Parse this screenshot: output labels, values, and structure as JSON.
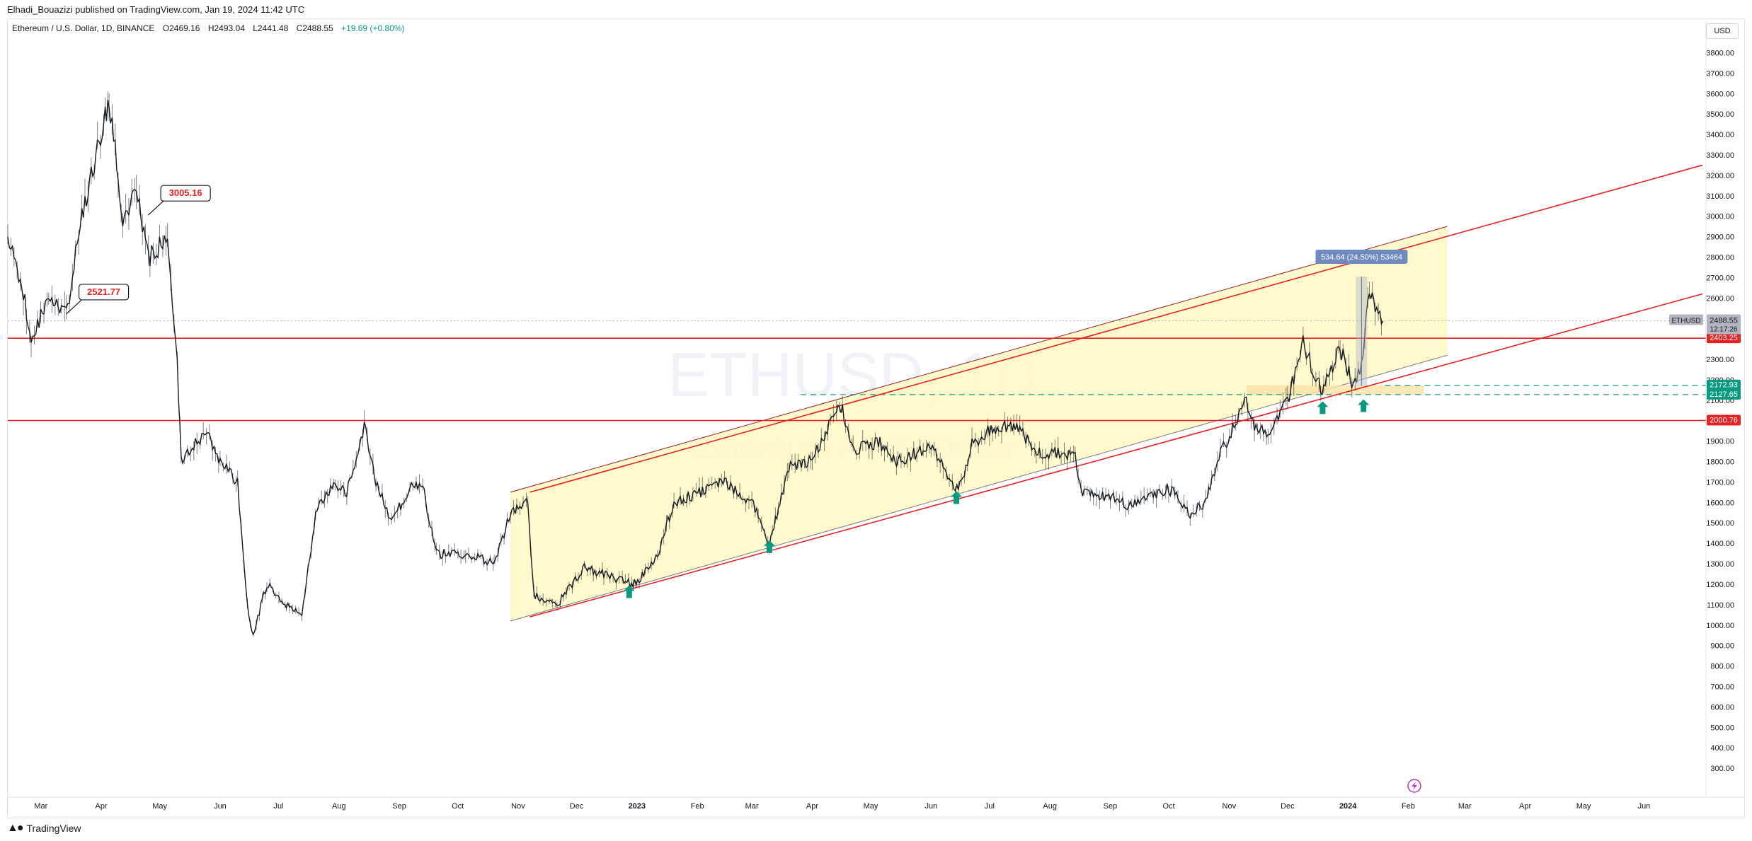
{
  "header": {
    "publisher": "Elhadi_Bouazizi published on TradingView.com, Jan 19, 2024 11:42 UTC"
  },
  "legend": {
    "symbol_desc": "Ethereum / U.S. Dollar, 1D, BINANCE",
    "open_label": "O",
    "open": "2469.16",
    "high_label": "H",
    "high": "2493.04",
    "low_label": "L",
    "low": "2441.48",
    "close_label": "C",
    "close": "2488.55",
    "change": "+19.69 (+0.80%)"
  },
  "currency": "USD",
  "footer": {
    "logo_text": "TradingView",
    "logo_icon": "tv-logo-icon"
  },
  "chart_data": {
    "type": "candlestick",
    "symbol": "ETHUSD",
    "interval": "1D",
    "watermark": {
      "symbol": "ETHUSD, 1D",
      "description": "Ethereum / U.S. Dollar"
    },
    "y_axis": {
      "scale": "linear",
      "range": [
        200,
        3850
      ],
      "ticks": [
        300,
        400,
        500,
        600,
        700,
        800,
        900,
        1000,
        1100,
        1200,
        1300,
        1400,
        1500,
        1600,
        1700,
        1800,
        1900,
        2000,
        2100,
        2200,
        2300,
        2400,
        2500,
        2600,
        2700,
        2800,
        2900,
        3000,
        3100,
        3200,
        3300,
        3400,
        3500,
        3600,
        3700,
        3800
      ]
    },
    "x_axis": {
      "range": [
        "2022-02-12",
        "2024-07-01"
      ],
      "ticks": [
        {
          "date": "2022-03-01",
          "label": "Mar",
          "bold": false
        },
        {
          "date": "2022-04-01",
          "label": "Apr",
          "bold": false
        },
        {
          "date": "2022-05-01",
          "label": "May",
          "bold": false
        },
        {
          "date": "2022-06-01",
          "label": "Jun",
          "bold": false
        },
        {
          "date": "2022-07-01",
          "label": "Jul",
          "bold": false
        },
        {
          "date": "2022-08-01",
          "label": "Aug",
          "bold": false
        },
        {
          "date": "2022-09-01",
          "label": "Sep",
          "bold": false
        },
        {
          "date": "2022-10-01",
          "label": "Oct",
          "bold": false
        },
        {
          "date": "2022-11-01",
          "label": "Nov",
          "bold": false
        },
        {
          "date": "2022-12-01",
          "label": "Dec",
          "bold": false
        },
        {
          "date": "2023-01-01",
          "label": "2023",
          "bold": true
        },
        {
          "date": "2023-02-01",
          "label": "Feb",
          "bold": false
        },
        {
          "date": "2023-03-01",
          "label": "Mar",
          "bold": false
        },
        {
          "date": "2023-04-01",
          "label": "Apr",
          "bold": false
        },
        {
          "date": "2023-05-01",
          "label": "May",
          "bold": false
        },
        {
          "date": "2023-06-01",
          "label": "Jun",
          "bold": false
        },
        {
          "date": "2023-07-01",
          "label": "Jul",
          "bold": false
        },
        {
          "date": "2023-08-01",
          "label": "Aug",
          "bold": false
        },
        {
          "date": "2023-09-01",
          "label": "Sep",
          "bold": false
        },
        {
          "date": "2023-10-01",
          "label": "Oct",
          "bold": false
        },
        {
          "date": "2023-11-01",
          "label": "Nov",
          "bold": false
        },
        {
          "date": "2023-12-01",
          "label": "Dec",
          "bold": false
        },
        {
          "date": "2024-01-01",
          "label": "2024",
          "bold": true
        },
        {
          "date": "2024-02-01",
          "label": "Feb",
          "bold": false
        },
        {
          "date": "2024-03-01",
          "label": "Mar",
          "bold": false
        },
        {
          "date": "2024-04-01",
          "label": "Apr",
          "bold": false
        },
        {
          "date": "2024-05-01",
          "label": "May",
          "bold": false
        },
        {
          "date": "2024-06-01",
          "label": "Jun",
          "bold": false
        }
      ]
    },
    "price_path": [
      [
        "2022-02-12",
        2900
      ],
      [
        "2022-02-20",
        2620
      ],
      [
        "2022-02-24",
        2400
      ],
      [
        "2022-03-05",
        2600
      ],
      [
        "2022-03-14",
        2520
      ],
      [
        "2022-03-22",
        3000
      ],
      [
        "2022-04-03",
        3500
      ],
      [
        "2022-04-05",
        3580
      ],
      [
        "2022-04-12",
        3000
      ],
      [
        "2022-04-19",
        3100
      ],
      [
        "2022-04-26",
        2800
      ],
      [
        "2022-05-05",
        2900
      ],
      [
        "2022-05-10",
        2300
      ],
      [
        "2022-05-12",
        1800
      ],
      [
        "2022-05-25",
        1950
      ],
      [
        "2022-06-01",
        1800
      ],
      [
        "2022-06-10",
        1700
      ],
      [
        "2022-06-15",
        1100
      ],
      [
        "2022-06-18",
        950
      ],
      [
        "2022-06-25",
        1200
      ],
      [
        "2022-07-05",
        1100
      ],
      [
        "2022-07-13",
        1050
      ],
      [
        "2022-07-20",
        1550
      ],
      [
        "2022-07-30",
        1700
      ],
      [
        "2022-08-05",
        1650
      ],
      [
        "2022-08-14",
        1980
      ],
      [
        "2022-08-20",
        1700
      ],
      [
        "2022-08-28",
        1500
      ],
      [
        "2022-09-08",
        1700
      ],
      [
        "2022-09-13",
        1680
      ],
      [
        "2022-09-20",
        1350
      ],
      [
        "2022-10-05",
        1350
      ],
      [
        "2022-10-20",
        1300
      ],
      [
        "2022-10-28",
        1550
      ],
      [
        "2022-11-06",
        1600
      ],
      [
        "2022-11-09",
        1150
      ],
      [
        "2022-11-21",
        1100
      ],
      [
        "2022-12-05",
        1280
      ],
      [
        "2022-12-15",
        1250
      ],
      [
        "2022-12-30",
        1200
      ],
      [
        "2023-01-10",
        1300
      ],
      [
        "2023-01-20",
        1600
      ],
      [
        "2023-02-02",
        1650
      ],
      [
        "2023-02-15",
        1700
      ],
      [
        "2023-03-01",
        1600
      ],
      [
        "2023-03-10",
        1400
      ],
      [
        "2023-03-20",
        1780
      ],
      [
        "2023-04-01",
        1800
      ],
      [
        "2023-04-15",
        2100
      ],
      [
        "2023-04-22",
        1850
      ],
      [
        "2023-05-05",
        1900
      ],
      [
        "2023-05-15",
        1800
      ],
      [
        "2023-06-01",
        1880
      ],
      [
        "2023-06-15",
        1650
      ],
      [
        "2023-06-22",
        1880
      ],
      [
        "2023-07-01",
        1950
      ],
      [
        "2023-07-15",
        1980
      ],
      [
        "2023-07-25",
        1850
      ],
      [
        "2023-08-14",
        1830
      ],
      [
        "2023-08-17",
        1650
      ],
      [
        "2023-09-01",
        1630
      ],
      [
        "2023-09-12",
        1580
      ],
      [
        "2023-10-01",
        1670
      ],
      [
        "2023-10-12",
        1550
      ],
      [
        "2023-10-20",
        1600
      ],
      [
        "2023-10-26",
        1800
      ],
      [
        "2023-11-09",
        2100
      ],
      [
        "2023-11-14",
        1980
      ],
      [
        "2023-11-21",
        1950
      ],
      [
        "2023-12-01",
        2100
      ],
      [
        "2023-12-09",
        2380
      ],
      [
        "2023-12-18",
        2150
      ],
      [
        "2023-12-28",
        2350
      ],
      [
        "2024-01-03",
        2200
      ],
      [
        "2024-01-08",
        2250
      ],
      [
        "2024-01-12",
        2650
      ],
      [
        "2024-01-15",
        2550
      ],
      [
        "2024-01-19",
        2488
      ]
    ],
    "channel": {
      "fill": "#fff9c4",
      "upper": [
        [
          "2022-10-28",
          1650
        ],
        [
          "2024-02-21",
          2950
        ]
      ],
      "lower": [
        [
          "2022-10-28",
          1020
        ],
        [
          "2024-02-21",
          2320
        ]
      ]
    },
    "trendlines": [
      {
        "color": "#e52222",
        "from": [
          "2022-11-07",
          1650
        ],
        "to": [
          "2024-07-01",
          3250
        ]
      },
      {
        "color": "#e52222",
        "from": [
          "2022-11-07",
          1040
        ],
        "to": [
          "2024-07-01",
          2620
        ]
      }
    ],
    "horizontal_levels": [
      {
        "price": 2403.25,
        "label": "2403.25",
        "color": "#e52222",
        "style": "solid"
      },
      {
        "price": 2000.76,
        "label": "2000.76",
        "color": "#e52222",
        "style": "solid"
      },
      {
        "price": 2172.93,
        "label": "2172.93",
        "color": "#089981",
        "style": "dashed",
        "from": "2024-01-20"
      },
      {
        "price": 2127.65,
        "label": "2127.65",
        "color": "#089981",
        "style": "dashed",
        "from": "2023-03-26"
      }
    ],
    "zone": {
      "from": "2023-11-10",
      "to": "2024-02-09",
      "low": 2127.65,
      "high": 2172.93,
      "fill": "#fde2a6"
    },
    "last_price": {
      "label": "ETHUSD",
      "price": 2488.55,
      "value": "2488.55",
      "countdown": "12:17:26"
    },
    "annotations": [
      {
        "text": "3005.16",
        "date": "2022-04-25",
        "price": 3005.16
      },
      {
        "text": "2521.77",
        "date": "2022-03-14",
        "price": 2521.77
      }
    ],
    "measure": {
      "text": "534.64 (24.50%) 53464",
      "date": "2024-01-08",
      "from": 2170,
      "to": 2705
    },
    "arrows": [
      {
        "date": "2022-12-28",
        "price": 1160
      },
      {
        "date": "2023-03-10",
        "price": 1380
      },
      {
        "date": "2023-06-14",
        "price": 1620
      },
      {
        "date": "2023-12-19",
        "price": 2060
      },
      {
        "date": "2024-01-09",
        "price": 2070
      }
    ],
    "replay_icon": "lightning-circle-icon"
  }
}
